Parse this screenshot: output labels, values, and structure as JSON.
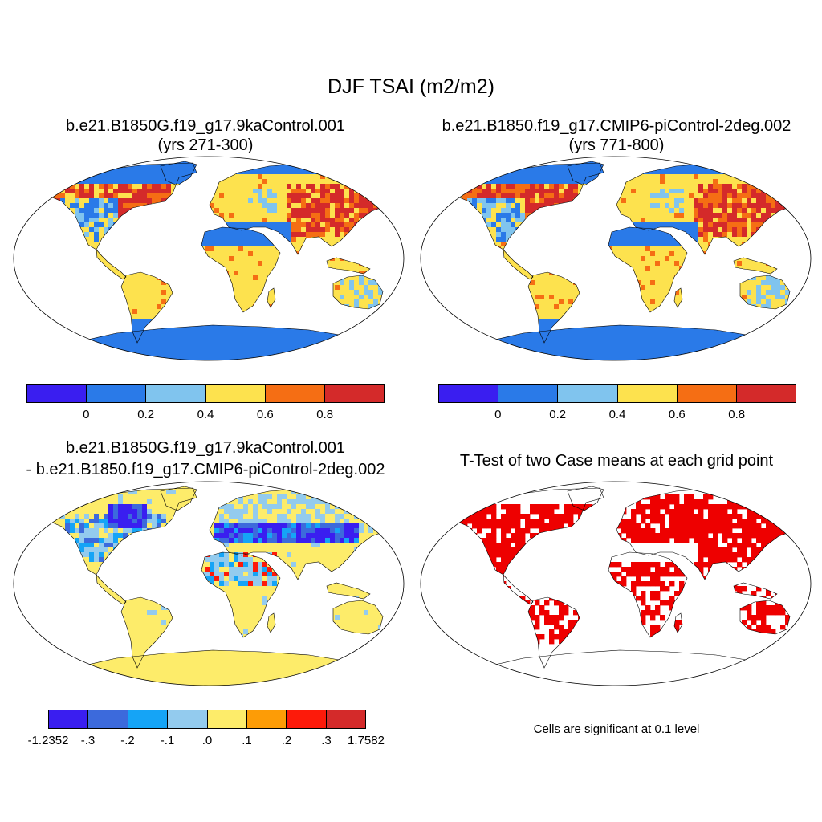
{
  "title": "DJF TSAI (m2/m2)",
  "panels": {
    "p1": {
      "title1": "b.e21.B1850G.f19_g17.9kaControl.001",
      "title2": "(yrs 271-300)"
    },
    "p2": {
      "title1": "b.e21.B1850.f19_g17.CMIP6-piControl-2deg.002",
      "title2": "(yrs 771-800)"
    },
    "p3": {
      "title1": "b.e21.B1850G.f19_g17.9kaControl.001",
      "title2": "- b.e21.B1850.f19_g17.CMIP6-piControl-2deg.002"
    },
    "p4": {
      "title1": "T-Test of two Case means at each grid point",
      "note": "Cells are significant at 0.1 level"
    }
  },
  "colorbars": {
    "field": {
      "colors": [
        "#3a1ef0",
        "#2a7ae8",
        "#80c4ee",
        "#fde24e",
        "#f56e14",
        "#d42a2a"
      ],
      "labels": [
        "0",
        "0.2",
        "0.4",
        "0.6",
        "0.8"
      ]
    },
    "diff": {
      "colors": [
        "#3a1ef0",
        "#3c6adc",
        "#15a4f6",
        "#93cbee",
        "#fdec6a",
        "#fd9c06",
        "#fd1a0a",
        "#d42a2a"
      ],
      "labels": [
        "-1.2352",
        "-.3",
        "-.2",
        "-.1",
        ".0",
        ".1",
        ".2",
        ".3",
        "1.7582"
      ]
    }
  },
  "colors": {
    "significant": "#ee0000",
    "ocean": "#ffffff",
    "outline": "#000000"
  }
}
